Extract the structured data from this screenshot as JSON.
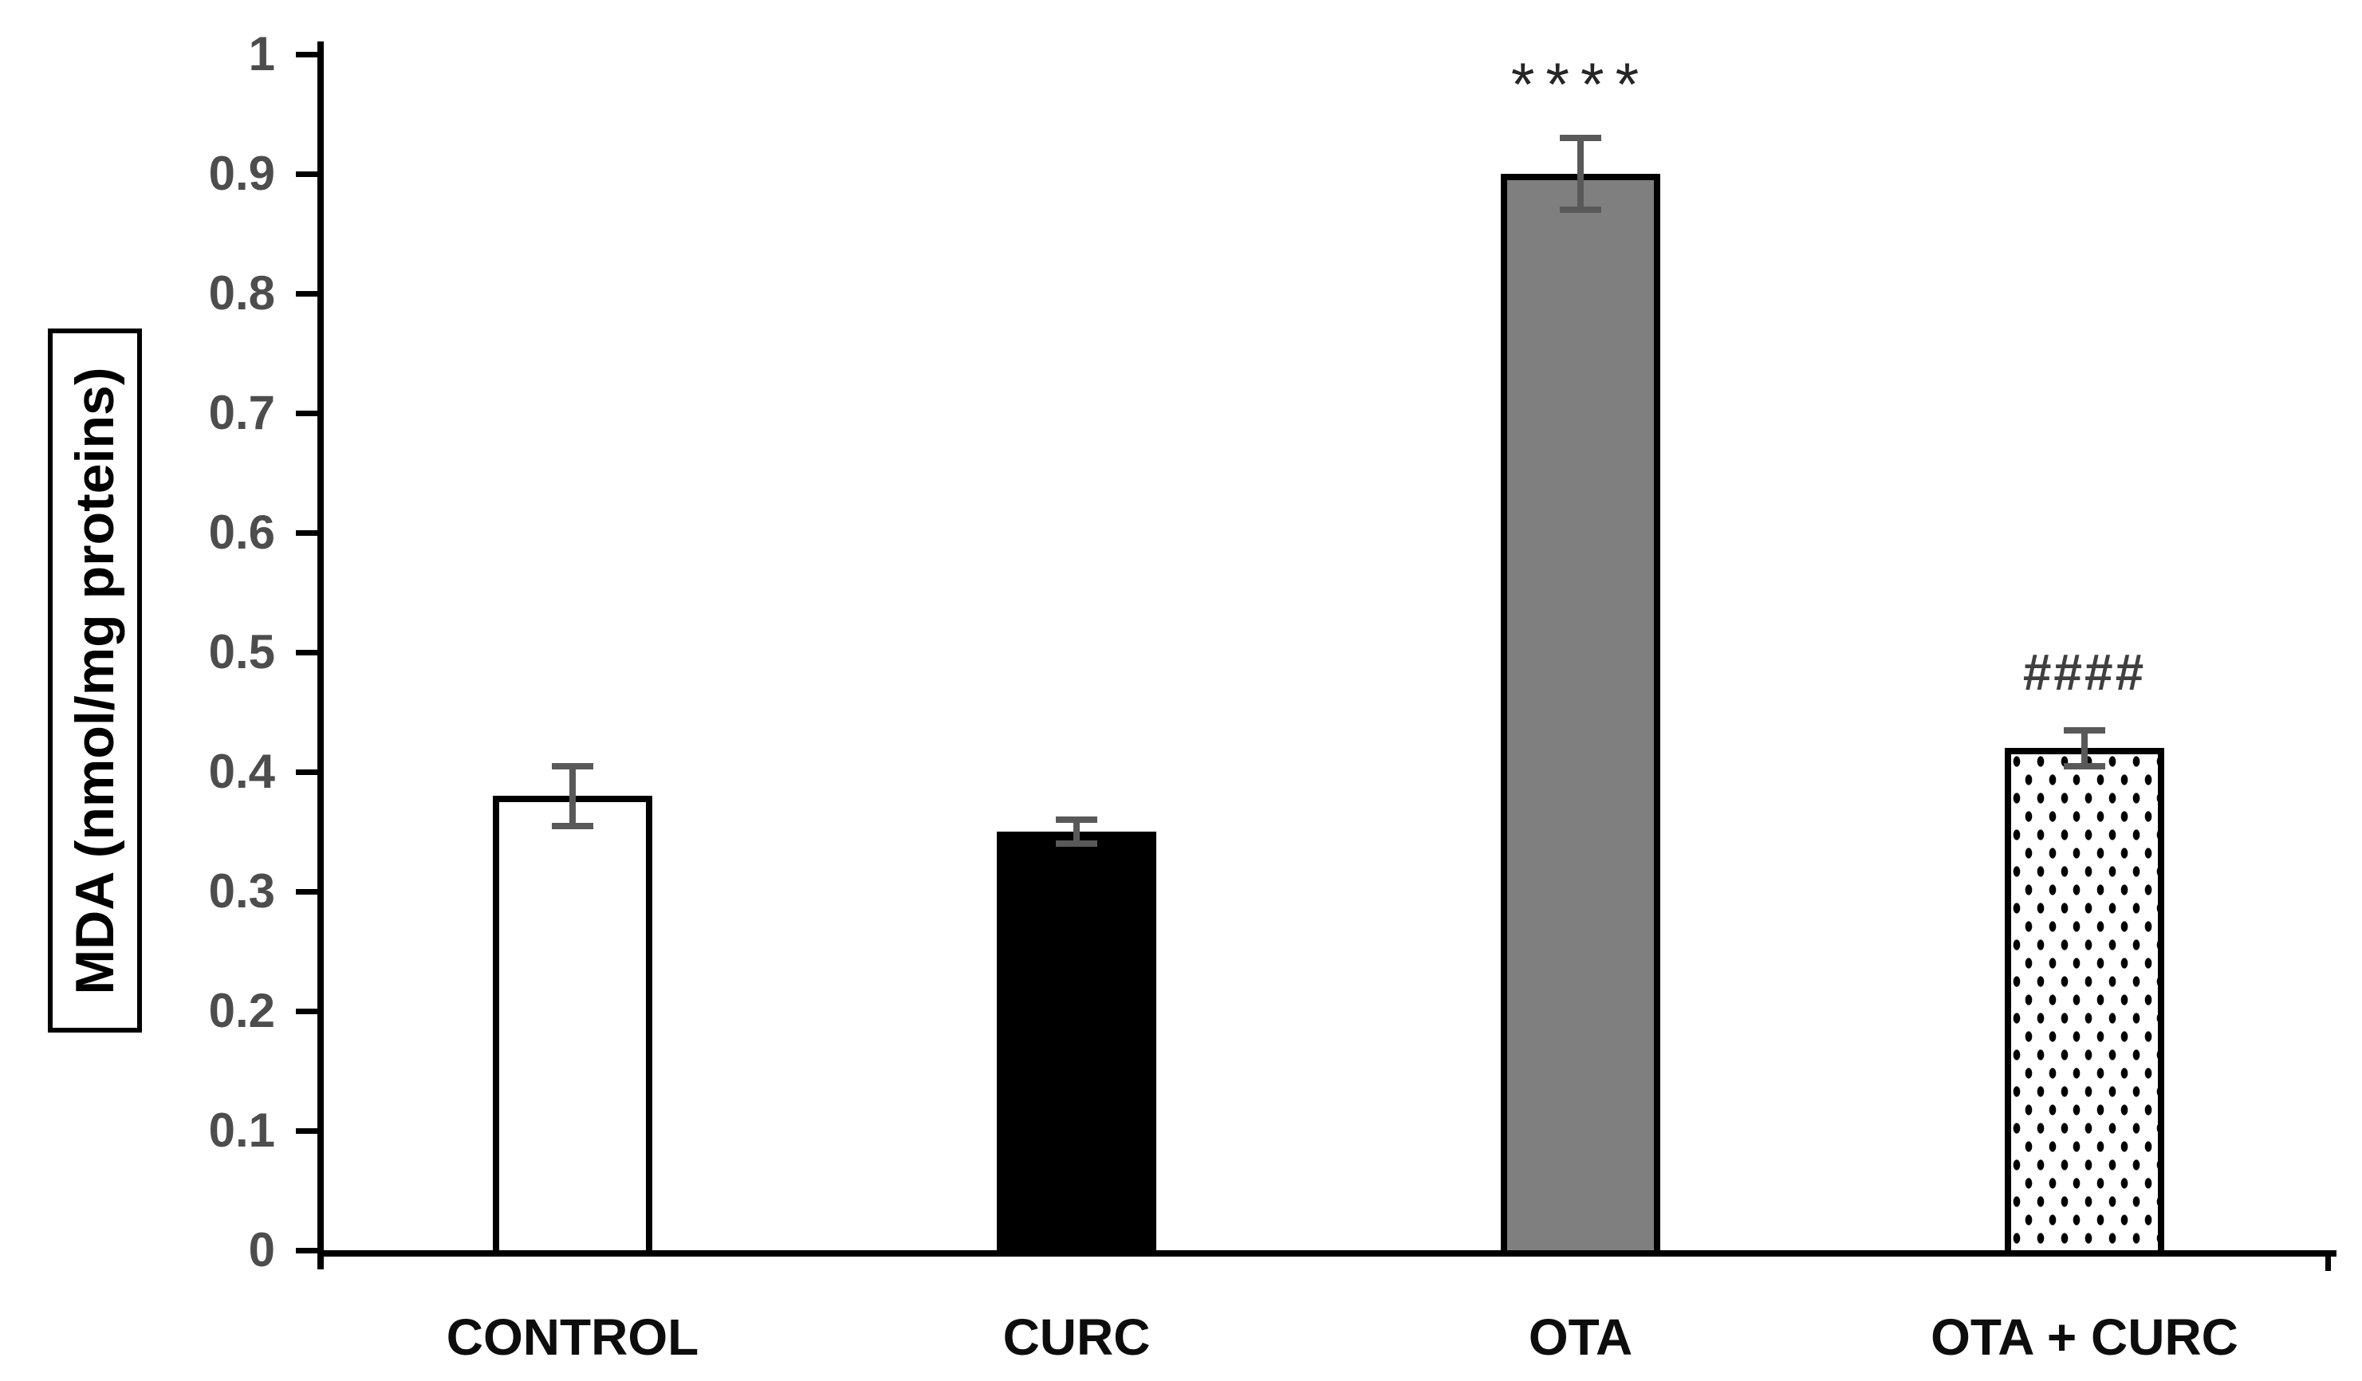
{
  "chart_data": {
    "type": "bar",
    "title": "",
    "xlabel": "",
    "ylabel": "MDA (nmol/mg proteins)",
    "ylim": [
      0,
      1
    ],
    "ytick_step": 0.1,
    "ytick_labels": [
      "0",
      "0.1",
      "0.2",
      "0.3",
      "0.4",
      "0.5",
      "0.6",
      "0.7",
      "0.8",
      "0.9",
      "1"
    ],
    "categories": [
      "CONTROL",
      "CURC",
      "OTA",
      "OTA + CURC"
    ],
    "values": [
      0.38,
      0.35,
      0.9,
      0.42
    ],
    "errors": [
      0.025,
      0.01,
      0.03,
      0.015
    ],
    "bar_styles": [
      {
        "name": "white-solid",
        "fill": "#ffffff",
        "border": "#000000",
        "pattern": "none"
      },
      {
        "name": "black-solid",
        "fill": "#000000",
        "border": "#000000",
        "pattern": "none"
      },
      {
        "name": "gray-solid",
        "fill": "#7f7f7f",
        "border": "#000000",
        "pattern": "none"
      },
      {
        "name": "white-dotted",
        "fill": "#ffffff",
        "border": "#000000",
        "pattern": "dots"
      }
    ],
    "annotations": [
      {
        "index": 2,
        "text": "****",
        "style": "asterisks"
      },
      {
        "index": 3,
        "text": "####",
        "style": "hashes"
      }
    ],
    "error_bar_color": "#595959",
    "axis_color": "#000000",
    "grid": false,
    "legend": false
  }
}
